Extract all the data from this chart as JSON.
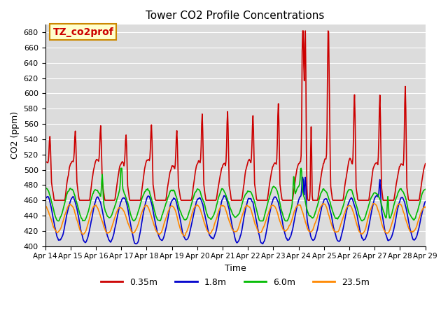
{
  "title": "Tower CO2 Profile Concentrations",
  "xlabel": "Time",
  "ylabel": "CO2 (ppm)",
  "ylim": [
    400,
    690
  ],
  "yticks": [
    400,
    420,
    440,
    460,
    480,
    500,
    520,
    540,
    560,
    580,
    600,
    620,
    640,
    660,
    680
  ],
  "series": {
    "0.35m": {
      "color": "#cc0000",
      "lw": 1.2
    },
    "1.8m": {
      "color": "#0000cc",
      "lw": 1.2
    },
    "6.0m": {
      "color": "#00bb00",
      "lw": 1.2
    },
    "23.5m": {
      "color": "#ff8800",
      "lw": 1.2
    }
  },
  "annotation": {
    "text": "TZ_co2prof",
    "fontsize": 10,
    "facecolor": "#ffffcc",
    "edgecolor": "#cc8800"
  },
  "legend_labels": [
    "0.35m",
    "1.8m",
    "6.0m",
    "23.5m"
  ],
  "legend_colors": [
    "#cc0000",
    "#0000cc",
    "#00bb00",
    "#ff8800"
  ],
  "plot_bg_color": "#dcdcdc",
  "xtick_labels": [
    "Apr 14",
    "Apr 15",
    "Apr 16",
    "Apr 17",
    "Apr 18",
    "Apr 19",
    "Apr 20",
    "Apr 21",
    "Apr 22",
    "Apr 23",
    "Apr 24",
    "Apr 25",
    "Apr 26",
    "Apr 27",
    "Apr 28",
    "Apr 29"
  ]
}
